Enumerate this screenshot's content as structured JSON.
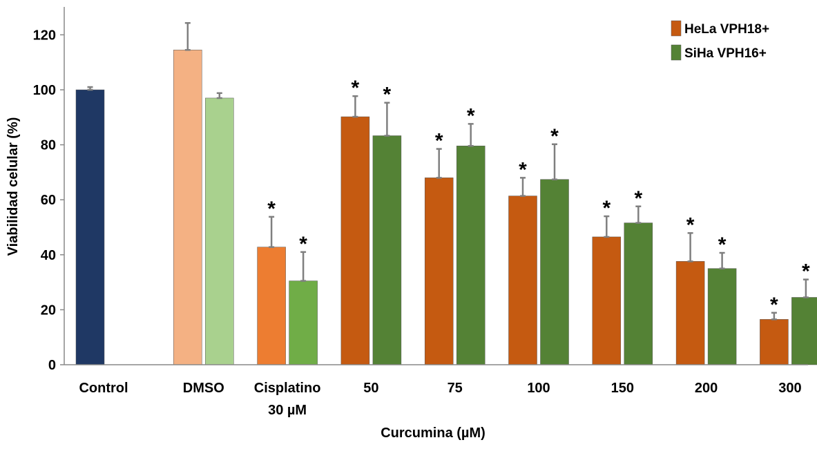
{
  "chart_data": {
    "type": "bar",
    "xlabel": "Curcumina (µM)",
    "ylabel": "Viabilidad celular (%)",
    "ylim": [
      0,
      130
    ],
    "yticks": [
      0,
      20,
      40,
      60,
      80,
      100,
      120
    ],
    "grid": false,
    "legend_position": "top-right",
    "categories": [
      [
        "Control"
      ],
      [
        "DMSO"
      ],
      [
        "Cisplatino",
        "30 µM"
      ],
      [
        "50"
      ],
      [
        "75"
      ],
      [
        "100"
      ],
      [
        "150"
      ],
      [
        "200"
      ],
      [
        "300"
      ]
    ],
    "control": {
      "value": 100,
      "error": 1,
      "color": "#1f3864"
    },
    "series": [
      {
        "name": "HeLa VPH18+",
        "legend_color": "#c55a11",
        "colors": [
          null,
          "#f4b183",
          "#ed7d31",
          "#c55a11",
          "#c55a11",
          "#c55a11",
          "#c55a11",
          "#c55a11",
          "#c55a11"
        ],
        "values": [
          null,
          114.5,
          42.8,
          90.2,
          68,
          61.4,
          46.5,
          37.6,
          16.5
        ],
        "errors": [
          null,
          9.8,
          11,
          7.5,
          10.5,
          6.6,
          7.5,
          10.3,
          2.4
        ],
        "significant": [
          false,
          false,
          true,
          true,
          true,
          true,
          true,
          true,
          true
        ]
      },
      {
        "name": "SiHa VPH16+",
        "legend_color": "#548235",
        "colors": [
          null,
          "#a9d18e",
          "#70ad47",
          "#548235",
          "#548235",
          "#548235",
          "#548235",
          "#548235",
          "#548235"
        ],
        "values": [
          null,
          97,
          30.5,
          83.3,
          79.6,
          67.4,
          51.6,
          35,
          24.5
        ],
        "errors": [
          null,
          1.8,
          10.5,
          12,
          8,
          12.8,
          6,
          5.7,
          6.5
        ],
        "significant": [
          false,
          false,
          true,
          true,
          true,
          true,
          true,
          true,
          true
        ]
      }
    ]
  }
}
